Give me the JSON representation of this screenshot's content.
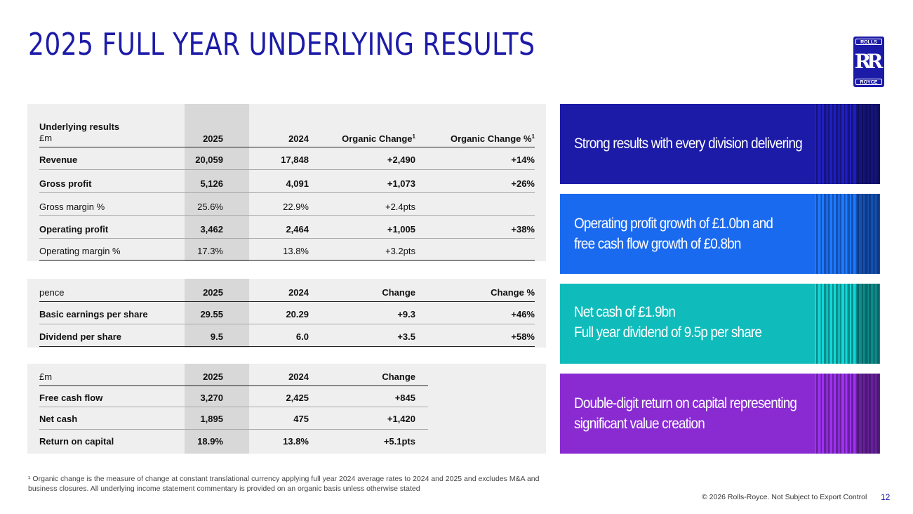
{
  "title": "2025 FULL YEAR UNDERLYING RESULTS",
  "logo": {
    "top": "ROLLS",
    "mono": "RR",
    "bottom": "ROYCE"
  },
  "table1": {
    "header": [
      "Underlying results",
      "£m",
      "2025",
      "2024",
      "Organic Change",
      "1",
      "Organic Change %",
      "1"
    ],
    "rows": [
      [
        "Revenue",
        "20,059",
        "17,848",
        "+2,490",
        "+14%"
      ],
      [
        "Gross profit",
        "5,126",
        "4,091",
        "+1,073",
        "+26%"
      ],
      [
        "Gross margin %",
        "25.6%",
        "22.9%",
        "+2.4pts",
        ""
      ],
      [
        "Operating profit",
        "3,462",
        "2,464",
        "+1,005",
        "+38%"
      ],
      [
        "Operating margin %",
        "17.3%",
        "13.8%",
        "+3.2pts",
        ""
      ]
    ]
  },
  "table2": {
    "header": [
      "pence",
      "2025",
      "2024",
      "Change",
      "Change %"
    ],
    "rows": [
      [
        "Basic earnings per share",
        "29.55",
        "20.29",
        "+9.3",
        "+46%"
      ],
      [
        "Dividend per share",
        "9.5",
        "6.0",
        "+3.5",
        "+58%"
      ]
    ]
  },
  "table3": {
    "header": [
      "£m",
      "2025",
      "2024",
      "Change"
    ],
    "rows": [
      [
        "Free cash flow",
        "3,270",
        "2,425",
        "+845"
      ],
      [
        "Net cash",
        "1,895",
        "475",
        "+1,420"
      ],
      [
        "Return on capital",
        "18.9%",
        "13.8%",
        "+5.1pts"
      ]
    ]
  },
  "highlights": [
    {
      "lines": [
        "Strong results with every division delivering"
      ],
      "color": "#1c1ba8"
    },
    {
      "lines": [
        "Operating profit growth of £1.0bn and",
        "free cash flow growth of £0.8bn"
      ],
      "color": "#1a6af0"
    },
    {
      "lines": [
        "Net cash of £1.9bn",
        "Full year dividend of 9.5p per share"
      ],
      "color": "#10bcbb"
    },
    {
      "lines": [
        "Double-digit return on capital representing",
        "significant value creation"
      ],
      "color": "#8a2bd2"
    }
  ],
  "footnote": "¹ Organic change is the measure of change at constant translational currency applying full year 2024 average rates to 2024 and 2025 and excludes M&A and business closures. All underlying income statement commentary is provided on an organic basis unless otherwise stated",
  "footer": "© 2026 Rolls-Royce. Not Subject to Export Control",
  "page_number": "12"
}
